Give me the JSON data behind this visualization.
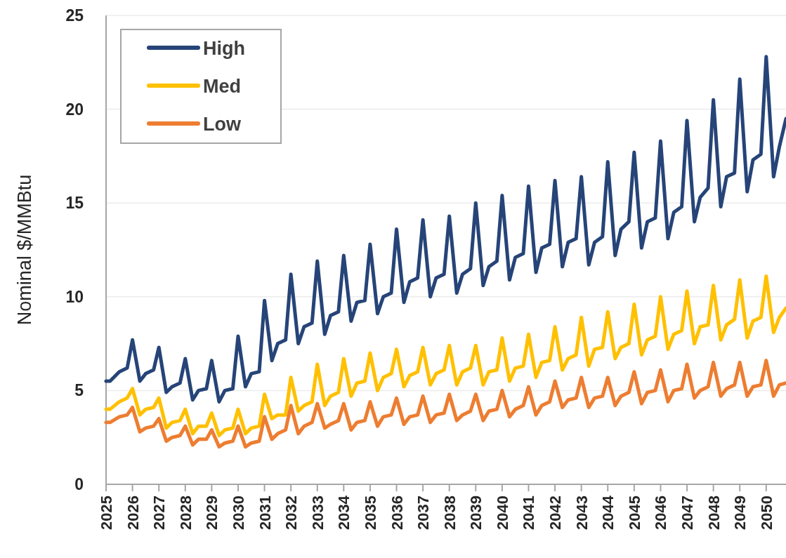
{
  "chart_data": {
    "type": "line",
    "ylabel": "Nominal $/MMBtu",
    "x": [
      2025,
      2025.15,
      2025.5,
      2025.8,
      2026,
      2026.28,
      2026.5,
      2026.8,
      2027,
      2027.28,
      2027.5,
      2027.8,
      2028,
      2028.28,
      2028.5,
      2028.8,
      2029,
      2029.28,
      2029.5,
      2029.8,
      2030,
      2030.28,
      2030.5,
      2030.8,
      2031,
      2031.28,
      2031.5,
      2031.8,
      2032,
      2032.28,
      2032.5,
      2032.8,
      2033,
      2033.28,
      2033.5,
      2033.8,
      2034,
      2034.28,
      2034.5,
      2034.8,
      2035,
      2035.28,
      2035.5,
      2035.8,
      2036,
      2036.28,
      2036.5,
      2036.8,
      2037,
      2037.28,
      2037.5,
      2037.8,
      2038,
      2038.28,
      2038.5,
      2038.8,
      2039,
      2039.28,
      2039.5,
      2039.8,
      2040,
      2040.28,
      2040.5,
      2040.8,
      2041,
      2041.28,
      2041.5,
      2041.8,
      2042,
      2042.28,
      2042.5,
      2042.8,
      2043,
      2043.28,
      2043.5,
      2043.8,
      2044,
      2044.28,
      2044.5,
      2044.8,
      2045,
      2045.28,
      2045.5,
      2045.8,
      2046,
      2046.28,
      2046.5,
      2046.8,
      2047,
      2047.28,
      2047.5,
      2047.8,
      2048,
      2048.28,
      2048.5,
      2048.8,
      2049,
      2049.28,
      2049.5,
      2049.8,
      2050,
      2050.28,
      2050.5,
      2050.75
    ],
    "series": [
      {
        "name": "High",
        "color": "#264478",
        "values": [
          5.5,
          5.5,
          6.0,
          6.2,
          7.7,
          5.5,
          5.9,
          6.1,
          7.3,
          4.9,
          5.2,
          5.4,
          6.7,
          4.5,
          5.0,
          5.1,
          6.6,
          4.4,
          5.0,
          5.1,
          7.9,
          5.2,
          5.9,
          6.0,
          9.8,
          6.6,
          7.5,
          7.7,
          11.2,
          7.5,
          8.4,
          8.6,
          11.9,
          8.0,
          9.0,
          9.2,
          12.2,
          8.7,
          9.7,
          9.8,
          12.8,
          9.1,
          10.0,
          10.2,
          13.6,
          9.7,
          10.8,
          11.0,
          14.1,
          10.0,
          11.0,
          11.2,
          14.3,
          10.2,
          11.2,
          11.5,
          15.0,
          10.6,
          11.6,
          11.9,
          15.4,
          10.9,
          12.1,
          12.3,
          15.9,
          11.3,
          12.6,
          12.8,
          16.2,
          11.6,
          12.9,
          13.1,
          16.4,
          11.7,
          12.9,
          13.2,
          17.2,
          12.2,
          13.6,
          14.0,
          17.7,
          12.6,
          14.0,
          14.2,
          18.3,
          13.1,
          14.5,
          14.8,
          19.4,
          14.0,
          15.3,
          15.8,
          20.5,
          14.8,
          16.4,
          16.6,
          21.6,
          15.6,
          17.3,
          17.6,
          22.8,
          16.4,
          18.0,
          19.5
        ]
      },
      {
        "name": "Med",
        "color": "#ffc000",
        "values": [
          4.0,
          4.0,
          4.4,
          4.6,
          5.1,
          3.7,
          4.0,
          4.1,
          4.6,
          3.0,
          3.3,
          3.4,
          4.0,
          2.7,
          3.1,
          3.1,
          3.8,
          2.6,
          2.9,
          3.0,
          4.0,
          2.7,
          3.0,
          3.1,
          4.8,
          3.5,
          3.7,
          3.7,
          5.7,
          3.9,
          4.2,
          4.4,
          6.4,
          4.2,
          4.7,
          4.9,
          6.7,
          4.7,
          5.4,
          5.5,
          7.0,
          5.0,
          5.7,
          5.9,
          7.2,
          5.2,
          5.8,
          6.0,
          7.3,
          5.3,
          5.9,
          6.1,
          7.4,
          5.3,
          6.0,
          6.2,
          7.4,
          5.3,
          6.0,
          6.1,
          7.8,
          5.5,
          6.2,
          6.3,
          8.0,
          5.7,
          6.5,
          6.6,
          8.4,
          6.1,
          6.7,
          6.9,
          8.9,
          6.3,
          7.2,
          7.3,
          9.2,
          6.7,
          7.3,
          7.5,
          9.6,
          6.9,
          7.7,
          7.9,
          10.0,
          7.2,
          8.0,
          8.2,
          10.3,
          7.5,
          8.4,
          8.5,
          10.6,
          7.7,
          8.5,
          8.8,
          10.9,
          7.8,
          8.7,
          8.9,
          11.1,
          8.1,
          8.9,
          9.4
        ]
      },
      {
        "name": "Low",
        "color": "#ed7d31",
        "values": [
          3.3,
          3.3,
          3.6,
          3.7,
          4.1,
          2.8,
          3.0,
          3.1,
          3.5,
          2.3,
          2.5,
          2.6,
          3.1,
          2.1,
          2.4,
          2.4,
          2.9,
          2.0,
          2.2,
          2.3,
          3.1,
          2.0,
          2.2,
          2.3,
          3.6,
          2.4,
          2.7,
          2.9,
          4.2,
          2.7,
          3.1,
          3.3,
          4.3,
          3.0,
          3.2,
          3.4,
          4.3,
          2.9,
          3.3,
          3.4,
          4.4,
          3.1,
          3.6,
          3.7,
          4.6,
          3.2,
          3.6,
          3.7,
          4.7,
          3.3,
          3.7,
          3.8,
          4.8,
          3.4,
          3.7,
          3.9,
          4.8,
          3.4,
          3.9,
          4.0,
          5.0,
          3.6,
          4.0,
          4.2,
          5.2,
          3.7,
          4.2,
          4.4,
          5.5,
          4.1,
          4.5,
          4.6,
          5.7,
          4.1,
          4.6,
          4.7,
          5.7,
          4.2,
          4.7,
          4.9,
          6.0,
          4.3,
          4.9,
          5.0,
          6.1,
          4.4,
          5.0,
          5.1,
          6.4,
          4.6,
          5.0,
          5.2,
          6.5,
          4.7,
          5.1,
          5.3,
          6.5,
          4.7,
          5.2,
          5.3,
          6.6,
          4.7,
          5.3,
          5.4
        ]
      }
    ],
    "xlim": [
      2025,
      2050.75
    ],
    "ylim": [
      0,
      25
    ],
    "xticks": [
      2025,
      2026,
      2027,
      2028,
      2029,
      2030,
      2031,
      2032,
      2033,
      2034,
      2035,
      2036,
      2037,
      2038,
      2039,
      2040,
      2041,
      2042,
      2043,
      2044,
      2045,
      2046,
      2047,
      2048,
      2049,
      2050
    ],
    "yticks": [
      0,
      5,
      10,
      15,
      20,
      25
    ],
    "grid": "y",
    "legend": "top left"
  }
}
